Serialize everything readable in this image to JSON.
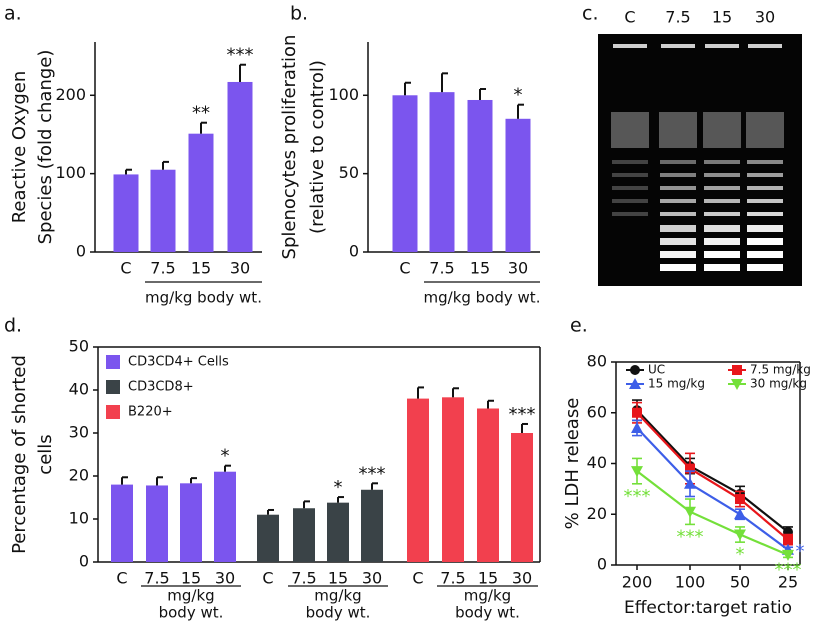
{
  "chart_data": [
    {
      "type": "bar",
      "panel_label": "a.",
      "categories": [
        "C",
        "7.5",
        "15",
        "30"
      ],
      "values": [
        99,
        105,
        151,
        217
      ],
      "errors": [
        6,
        10,
        14,
        22
      ],
      "annotations": [
        null,
        null,
        "**",
        "***"
      ],
      "color": "#7b55ee",
      "ylim": [
        0,
        268
      ],
      "yticks": [
        0,
        100,
        200
      ],
      "ylabel": [
        "Reactive Oxygen",
        "Species (fold change)"
      ],
      "xlabel": "mg/kg body wt."
    },
    {
      "type": "bar",
      "panel_label": "b.",
      "categories": [
        "C",
        "7.5",
        "15",
        "30"
      ],
      "values": [
        100,
        102,
        97,
        85
      ],
      "errors": [
        8,
        12,
        7,
        9
      ],
      "annotations": [
        null,
        null,
        null,
        "*"
      ],
      "color": "#7b55ee",
      "ylim": [
        0,
        134
      ],
      "yticks": [
        0,
        50,
        100
      ],
      "ylabel": [
        "Splenocytes proliferation",
        "(relative to control)"
      ],
      "xlabel": "mg/kg body wt."
    },
    {
      "type": "gel",
      "panel_label": "c.",
      "lanes": [
        "C",
        "7.5",
        "15",
        "30"
      ]
    },
    {
      "type": "grouped_bar",
      "panel_label": "d.",
      "categories": [
        "C",
        "7.5",
        "15",
        "30"
      ],
      "series": [
        {
          "name": "CD3CD4+ Cells",
          "color": "#7b55ee",
          "values": [
            18,
            17.8,
            18.3,
            21
          ],
          "errors": [
            1.7,
            1.9,
            1.2,
            1.4
          ],
          "annotations": [
            null,
            null,
            null,
            "*"
          ]
        },
        {
          "name": "CD3CD8+",
          "color": "#3a4347",
          "values": [
            11,
            12.5,
            13.8,
            16.8
          ],
          "errors": [
            1.1,
            1.6,
            1.3,
            1.5
          ],
          "annotations": [
            null,
            null,
            "*",
            "***"
          ]
        },
        {
          "name": "B220+",
          "color": "#f2404e",
          "values": [
            38,
            38.3,
            35.7,
            30
          ],
          "errors": [
            2.6,
            2.1,
            1.8,
            2.1
          ],
          "annotations": [
            null,
            null,
            null,
            "***"
          ]
        }
      ],
      "ylim": [
        0,
        50
      ],
      "yticks": [
        0,
        10,
        20,
        30,
        40,
        50
      ],
      "ylabel": [
        "Percentage of shorted",
        "cells"
      ],
      "xlabel": [
        "mg/kg",
        "body wt."
      ]
    },
    {
      "type": "line",
      "panel_label": "e.",
      "categories": [
        "200",
        "100",
        "50",
        "25"
      ],
      "series": [
        {
          "name": "UC",
          "color": "#111111",
          "marker": "circle",
          "values": [
            61,
            39,
            28,
            13
          ],
          "errors": [
            4,
            3,
            3,
            2
          ],
          "annotations": [
            null,
            null,
            null,
            null
          ]
        },
        {
          "name": "7.5 mg/kg",
          "color": "#e8161b",
          "marker": "square",
          "values": [
            60,
            38,
            26,
            10
          ],
          "errors": [
            4,
            6,
            3,
            2
          ],
          "annotations": [
            null,
            null,
            null,
            null
          ]
        },
        {
          "name": "15 mg/kg",
          "color": "#3d5ee8",
          "marker": "triangle-up",
          "values": [
            54,
            32,
            20,
            6
          ],
          "errors": [
            3,
            5,
            2,
            1
          ],
          "annotations": [
            null,
            null,
            null,
            "*"
          ]
        },
        {
          "name": "30 mg/kg",
          "color": "#74e03a",
          "marker": "triangle-down",
          "values": [
            37,
            21,
            12,
            4
          ],
          "errors": [
            5,
            5,
            3,
            1
          ],
          "annotations": [
            "***",
            "***",
            "*",
            "***"
          ]
        }
      ],
      "ylim": [
        0,
        80
      ],
      "yticks": [
        0,
        20,
        40,
        60,
        80
      ],
      "ylabel": "% LDH release",
      "xlabel": "Effector:target ratio"
    }
  ]
}
